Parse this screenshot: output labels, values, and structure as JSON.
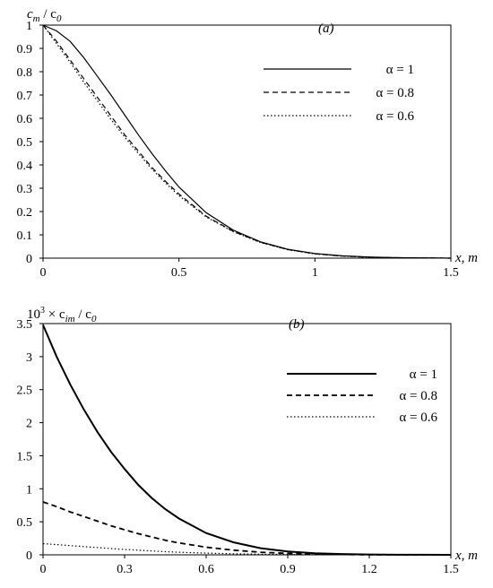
{
  "chart_data": [
    {
      "type": "line",
      "panel_label": "(a)",
      "ylabel_main": "c",
      "ylabel_sub": "m",
      "ylabel_rest": " / c",
      "ylabel_sub2": "0",
      "xlabel": "x, m",
      "xlim": [
        0,
        1.5
      ],
      "ylim": [
        0,
        1
      ],
      "xticks": [
        "0",
        "0.5",
        "1",
        "1.5"
      ],
      "xtick_values": [
        0,
        0.5,
        1,
        1.5
      ],
      "yticks": [
        "0",
        "0.1",
        "0.2",
        "0.3",
        "0.4",
        "0.5",
        "0.6",
        "0.7",
        "0.8",
        "0.9",
        "1"
      ],
      "ytick_values": [
        0,
        0.1,
        0.2,
        0.3,
        0.4,
        0.5,
        0.6,
        0.7,
        0.8,
        0.9,
        1
      ],
      "x": [
        0,
        0.05,
        0.1,
        0.15,
        0.2,
        0.25,
        0.3,
        0.35,
        0.4,
        0.45,
        0.5,
        0.6,
        0.7,
        0.8,
        0.9,
        1.0,
        1.1,
        1.2,
        1.3,
        1.4,
        1.5
      ],
      "series": [
        {
          "name": "α = 1",
          "style": "solid",
          "values": [
            1.0,
            0.975,
            0.93,
            0.86,
            0.78,
            0.7,
            0.615,
            0.53,
            0.45,
            0.375,
            0.305,
            0.195,
            0.12,
            0.07,
            0.038,
            0.02,
            0.01,
            0.005,
            0.002,
            0.001,
            0.0
          ]
        },
        {
          "name": "α = 0.8",
          "style": "dashed",
          "values": [
            1.0,
            0.93,
            0.85,
            0.77,
            0.69,
            0.61,
            0.53,
            0.46,
            0.39,
            0.33,
            0.275,
            0.18,
            0.115,
            0.068,
            0.037,
            0.019,
            0.009,
            0.004,
            0.002,
            0.001,
            0.0
          ]
        },
        {
          "name": "α = 0.6",
          "style": "dotted",
          "values": [
            1.0,
            0.92,
            0.84,
            0.755,
            0.675,
            0.595,
            0.52,
            0.45,
            0.383,
            0.323,
            0.268,
            0.177,
            0.113,
            0.067,
            0.036,
            0.018,
            0.009,
            0.004,
            0.002,
            0.001,
            0.0
          ]
        }
      ],
      "legend_position": "top-right"
    },
    {
      "type": "line",
      "panel_label": "(b)",
      "ylabel_prefix": "10",
      "ylabel_exp": "3",
      "ylabel_times": " × c",
      "ylabel_sub": "im",
      "ylabel_rest": " / c",
      "ylabel_sub2": "0",
      "xlabel": "x, m",
      "xlim": [
        0,
        1.5
      ],
      "ylim": [
        0,
        3.5
      ],
      "xticks": [
        "0",
        "0.3",
        "0.6",
        "0.9",
        "1.2",
        "1.5"
      ],
      "xtick_values": [
        0,
        0.3,
        0.6,
        0.9,
        1.2,
        1.5
      ],
      "yticks": [
        "0",
        "0.5",
        "1",
        "1.5",
        "2",
        "2.5",
        "3",
        "3.5"
      ],
      "ytick_values": [
        0,
        0.5,
        1,
        1.5,
        2,
        2.5,
        3,
        3.5
      ],
      "x": [
        0,
        0.05,
        0.1,
        0.15,
        0.2,
        0.25,
        0.3,
        0.35,
        0.4,
        0.45,
        0.5,
        0.6,
        0.7,
        0.8,
        0.9,
        1.0,
        1.1,
        1.2,
        1.3,
        1.4,
        1.5
      ],
      "series": [
        {
          "name": "α = 1",
          "style": "solid",
          "values": [
            3.48,
            3.0,
            2.58,
            2.2,
            1.86,
            1.56,
            1.3,
            1.06,
            0.86,
            0.69,
            0.55,
            0.33,
            0.19,
            0.1,
            0.05,
            0.025,
            0.012,
            0.005,
            0.002,
            0.001,
            0.0
          ]
        },
        {
          "name": "α = 0.8",
          "style": "dashed",
          "values": [
            0.8,
            0.73,
            0.65,
            0.58,
            0.51,
            0.44,
            0.38,
            0.32,
            0.27,
            0.22,
            0.18,
            0.115,
            0.07,
            0.04,
            0.022,
            0.011,
            0.005,
            0.002,
            0.001,
            0.0,
            0.0
          ]
        },
        {
          "name": "α = 0.6",
          "style": "dotted",
          "values": [
            0.17,
            0.155,
            0.14,
            0.125,
            0.11,
            0.095,
            0.082,
            0.07,
            0.058,
            0.048,
            0.04,
            0.026,
            0.016,
            0.009,
            0.005,
            0.003,
            0.001,
            0.0,
            0.0,
            0.0,
            0.0
          ]
        }
      ],
      "legend_position": "right"
    }
  ]
}
